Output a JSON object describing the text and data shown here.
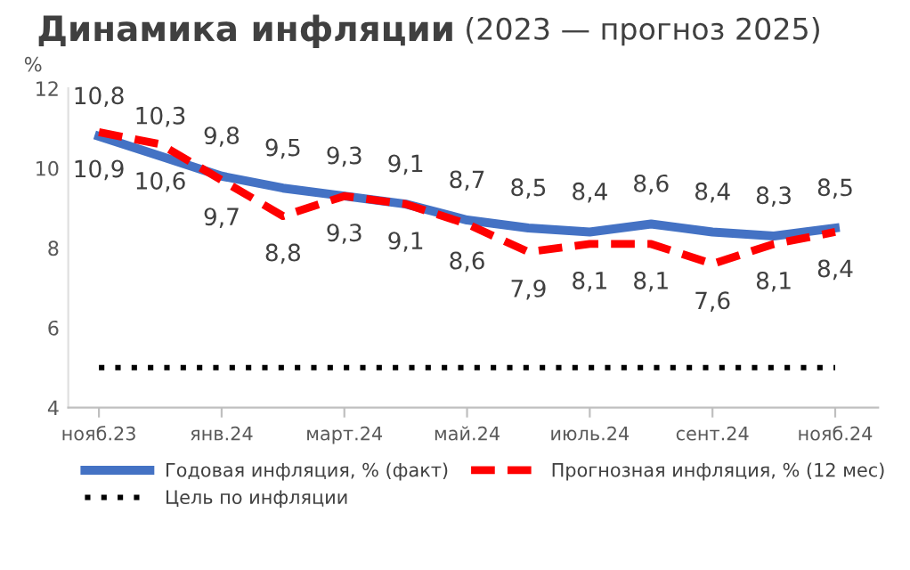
{
  "chart_data": {
    "type": "line",
    "title": "Динамика инфляции",
    "subtitle": "(2023 — прогноз 2025)",
    "ylabel": "%",
    "categories": [
      "нояб.23",
      null,
      "янв.24",
      null,
      "март.24",
      null,
      "май.24",
      null,
      "июль.24",
      null,
      "сент.24",
      null,
      "нояб.24"
    ],
    "series": [
      {
        "name": "Годовая инфляция, % (факт)",
        "color": "#4472c4",
        "line_style": "solid",
        "values": [
          10.8,
          10.3,
          9.8,
          9.5,
          9.3,
          9.1,
          8.7,
          8.5,
          8.4,
          8.6,
          8.4,
          8.3,
          8.5
        ],
        "value_labels": [
          "10,8",
          "10,3",
          "9,8",
          "9,5",
          "9,3",
          "9,1",
          "8,7",
          "8,5",
          "8,4",
          "8,6",
          "8,4",
          "8,3",
          "8,5"
        ]
      },
      {
        "name": "Прогнозная инфляция, % (12 мес)",
        "color": "#ff0000",
        "line_style": "dashed",
        "values": [
          10.9,
          10.6,
          9.7,
          8.8,
          9.3,
          9.1,
          8.6,
          7.9,
          8.1,
          8.1,
          7.6,
          8.1,
          8.4
        ],
        "value_labels": [
          "10,9",
          "10,6",
          "9,7",
          "8,8",
          "9,3",
          "9,1",
          "8,6",
          "7,9",
          "8,1",
          "8,1",
          "7,6",
          "8,1",
          "8,4"
        ]
      }
    ],
    "ref_lines": [
      {
        "axis": "y",
        "value": 5,
        "label": "Цель по инфляции",
        "color": "#000000",
        "line_style": "dotted"
      }
    ],
    "ylim": [
      4,
      12
    ],
    "yticks": [
      4,
      6,
      8,
      10,
      12
    ],
    "grid": false,
    "legend": "bottom",
    "marker": "none"
  }
}
